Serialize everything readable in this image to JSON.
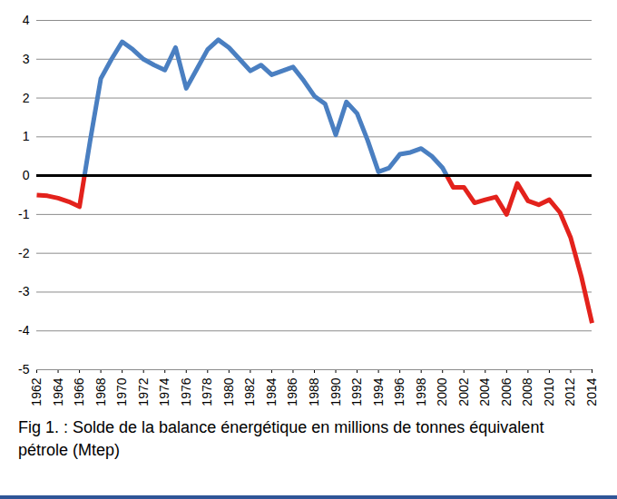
{
  "chart_data": {
    "type": "line",
    "title": "Fig 1. : Solde de la balance énergétique en millions de tonnes équivalent pétrole (Mtep)",
    "x": [
      1962,
      1963,
      1964,
      1965,
      1966,
      1967,
      1968,
      1969,
      1970,
      1971,
      1972,
      1973,
      1974,
      1975,
      1976,
      1977,
      1978,
      1979,
      1980,
      1981,
      1982,
      1983,
      1984,
      1985,
      1986,
      1987,
      1988,
      1989,
      1990,
      1991,
      1992,
      1993,
      1994,
      1995,
      1996,
      1997,
      1998,
      1999,
      2000,
      2001,
      2002,
      2003,
      2004,
      2005,
      2006,
      2007,
      2008,
      2009,
      2010,
      2011,
      2012,
      2013,
      2014
    ],
    "values": [
      -0.5,
      -0.52,
      -0.58,
      -0.67,
      -0.8,
      0.9,
      2.5,
      3.0,
      3.45,
      3.25,
      3.0,
      2.85,
      2.72,
      3.3,
      2.25,
      2.75,
      3.25,
      3.5,
      3.3,
      3.0,
      2.7,
      2.85,
      2.6,
      2.7,
      2.8,
      2.45,
      2.05,
      1.85,
      1.05,
      1.9,
      1.6,
      0.9,
      0.1,
      0.2,
      0.55,
      0.6,
      0.7,
      0.5,
      0.2,
      -0.3,
      -0.3,
      -0.7,
      -0.62,
      -0.55,
      -1.0,
      -0.2,
      -0.65,
      -0.75,
      -0.62,
      -0.95,
      -1.6,
      -2.6,
      -3.8
    ],
    "colors": [
      "#4a7fc1",
      "#e3221c"
    ],
    "xlim": [
      1962,
      2014
    ],
    "ylim": [
      -5,
      4
    ],
    "xticks": [
      1962,
      1964,
      1966,
      1968,
      1970,
      1972,
      1974,
      1976,
      1978,
      1980,
      1982,
      1984,
      1986,
      1988,
      1990,
      1992,
      1994,
      1996,
      1998,
      2000,
      2002,
      2004,
      2006,
      2008,
      2010,
      2012,
      2014
    ],
    "yticks": [
      -5,
      -4,
      -3,
      -2,
      -1,
      0,
      1,
      2,
      3,
      4
    ],
    "grid": true
  }
}
